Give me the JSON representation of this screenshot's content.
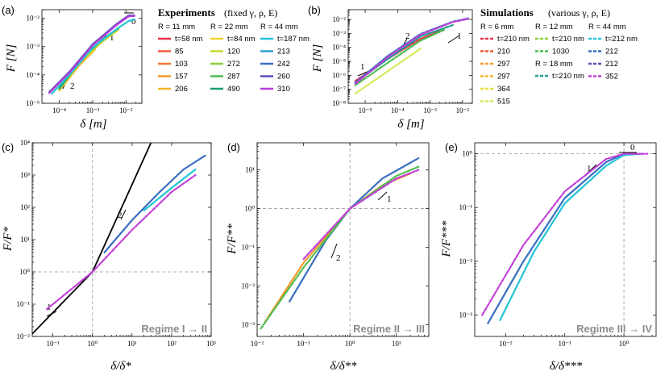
{
  "panels": {
    "a": {
      "label": "(a)",
      "xlabel": "δ [m]",
      "ylabel": "F [N]",
      "xticks": [
        "10⁻⁴",
        "10⁻³",
        "10⁻²"
      ],
      "yticks": [
        "10⁻⁵",
        "10⁻⁴",
        "10⁻³",
        "10⁻²"
      ],
      "slope_labels": [
        "0",
        "1",
        "2"
      ]
    },
    "b": {
      "label": "(b)",
      "xlabel": "δ [m]",
      "ylabel": "F [N]",
      "xticks": [
        "10⁻⁵",
        "10⁻⁴",
        "10⁻³",
        "10⁻²"
      ],
      "yticks": [
        "10⁻⁸",
        "10⁻⁷",
        "10⁻⁶",
        "10⁻⁵",
        "10⁻⁴",
        "10⁻³",
        "10⁻²"
      ],
      "slope_labels": [
        "1",
        "2",
        "1"
      ]
    },
    "c": {
      "label": "(c)",
      "xlabel": "δ/δ*",
      "ylabel": "F/F*",
      "xticks": [
        "10⁻¹",
        "10⁰",
        "10¹",
        "10²",
        "10³"
      ],
      "yticks": [
        "10⁻²",
        "10⁻¹",
        "10⁰",
        "10¹",
        "10²",
        "10³",
        "10⁴"
      ],
      "slope_labels": [
        "1",
        "2"
      ],
      "regime": "Regime I → II"
    },
    "d": {
      "label": "(d)",
      "xlabel": "δ/δ**",
      "ylabel": "F/F**",
      "xticks": [
        "10⁻²",
        "10⁻¹",
        "10⁰",
        "10¹"
      ],
      "yticks": [
        "10⁻³",
        "10⁻²",
        "10⁻¹",
        "10⁰",
        "10¹"
      ],
      "slope_labels": [
        "1",
        "2"
      ],
      "regime": "Regime II → III"
    },
    "e": {
      "label": "(e)",
      "xlabel": "δ/δ***",
      "ylabel": "F/F***",
      "xticks": [
        "10⁻²",
        "10⁻¹",
        "10⁰"
      ],
      "yticks": [
        "10⁻³",
        "10⁻²",
        "10⁻¹",
        "10⁰"
      ],
      "slope_labels": [
        "0",
        "1"
      ],
      "regime": "Regime III → IV"
    }
  },
  "legend_exp": {
    "title": "Experiments",
    "subtitle": "(fixed γ, ρ, E)",
    "groups": [
      {
        "header": "R = 11 mm",
        "items": [
          {
            "label": "t=58 nm",
            "color": "#e8324f"
          },
          {
            "label": "85",
            "color": "#f25a3a"
          },
          {
            "label": "103",
            "color": "#f47a30"
          },
          {
            "label": "157",
            "color": "#f59a2a"
          },
          {
            "label": "206",
            "color": "#f2b72b"
          }
        ]
      },
      {
        "header": "R = 22 mm",
        "items": [
          {
            "label": "t=84 nm",
            "color": "#f4d22c"
          },
          {
            "label": "120",
            "color": "#c9d92e"
          },
          {
            "label": "272",
            "color": "#8fcf3c"
          },
          {
            "label": "287",
            "color": "#4ebd50"
          },
          {
            "label": "490",
            "color": "#1e9f6e"
          }
        ]
      },
      {
        "header": "R = 44 mm",
        "items": [
          {
            "label": "t=187 nm",
            "color": "#22c5d6"
          },
          {
            "label": "213",
            "color": "#2a9fd0"
          },
          {
            "label": "242",
            "color": "#3a6fc0"
          },
          {
            "label": "260",
            "color": "#5d4fb8"
          },
          {
            "label": "310",
            "color": "#b23fd8"
          }
        ]
      }
    ]
  },
  "legend_sim": {
    "title": "Simulations",
    "subtitle": "(various γ, ρ, E)",
    "groups": [
      {
        "header": "R = 6 mm",
        "items": [
          {
            "label": "t=210 nm",
            "color": "#e8324f"
          },
          {
            "label": "210",
            "color": "#f25a3a"
          },
          {
            "label": "297",
            "color": "#f59a2a"
          },
          {
            "label": "297",
            "color": "#f2b72b"
          },
          {
            "label": "364",
            "color": "#e6e23a"
          },
          {
            "label": "515",
            "color": "#d8e85a"
          }
        ]
      },
      {
        "header": "R = 12 mm",
        "items": [
          {
            "label": "t=210 nm",
            "color": "#8fcf3c"
          },
          {
            "label": "1030",
            "color": "#4ebd50"
          }
        ]
      },
      {
        "header": "R = 18 mm",
        "items": [
          {
            "label": "t=210 nm",
            "color": "#1e9f8e"
          }
        ]
      },
      {
        "header": "R = 44 mm",
        "items": [
          {
            "label": "t=212 nm",
            "color": "#22c5d6"
          },
          {
            "label": "212",
            "color": "#3a6fc0"
          },
          {
            "label": "212",
            "color": "#5d4fb8"
          },
          {
            "label": "352",
            "color": "#c23fd8"
          }
        ]
      }
    ]
  },
  "chart_data": [
    {
      "panel": "a",
      "type": "line",
      "title": "Experiments (fixed γ, ρ, E)",
      "xlabel": "δ [m]",
      "ylabel": "F [N]",
      "xscale": "log",
      "yscale": "log",
      "xlim": [
        3e-05,
        0.03
      ],
      "ylim": [
        1e-05,
        0.02
      ],
      "series": [
        {
          "name": "R=11 mm, t=58 nm",
          "color": "#e8324f",
          "x": [
            0.0001,
            0.0004,
            0.0012
          ],
          "y": [
            3e-05,
            0.00025,
            0.0009
          ]
        },
        {
          "name": "R=11 mm, t=206 nm",
          "color": "#f2b72b",
          "x": [
            0.0001,
            0.0004,
            0.0012
          ],
          "y": [
            2.8e-05,
            0.00022,
            0.0008
          ]
        },
        {
          "name": "R=22 mm, t=120 nm",
          "color": "#c9d92e",
          "x": [
            0.0001,
            0.0005,
            0.002,
            0.006
          ],
          "y": [
            3e-05,
            0.00035,
            0.0015,
            0.004
          ]
        },
        {
          "name": "R=22 mm, t=490 nm",
          "color": "#1e9f6e",
          "x": [
            0.0001,
            0.0005,
            0.002,
            0.006
          ],
          "y": [
            3.3e-05,
            0.0004,
            0.0018,
            0.0045
          ]
        },
        {
          "name": "R=44 mm, t=187 nm",
          "color": "#22c5d6",
          "x": [
            6e-05,
            0.0002,
            0.001,
            0.005,
            0.012,
            0.018
          ],
          "y": [
            2.2e-05,
            0.0001,
            0.0009,
            0.004,
            0.008,
            0.009
          ]
        },
        {
          "name": "R=44 mm, t=260 nm",
          "color": "#5d4fb8",
          "x": [
            5e-05,
            0.0002,
            0.001,
            0.005,
            0.012,
            0.018
          ],
          "y": [
            2.5e-05,
            0.00013,
            0.0012,
            0.006,
            0.0125,
            0.0125
          ]
        },
        {
          "name": "R=44 mm, t=310 nm",
          "color": "#b23fd8",
          "x": [
            5e-05,
            0.0002,
            0.001,
            0.005,
            0.012,
            0.018
          ],
          "y": [
            2.3e-05,
            0.00012,
            0.0011,
            0.0055,
            0.0115,
            0.012
          ]
        }
      ]
    },
    {
      "panel": "b",
      "type": "line",
      "title": "Simulations (various γ, ρ, E)",
      "xlabel": "δ [m]",
      "ylabel": "F [N]",
      "xscale": "log",
      "yscale": "log",
      "xlim": [
        3e-06,
        0.02
      ],
      "ylim": [
        1e-08,
        0.05
      ],
      "series": [
        {
          "name": "R=6 mm, t=210 nm",
          "color": "#e8324f",
          "x": [
            5e-06,
            5e-05,
            0.0005,
            0.002
          ],
          "y": [
            4e-07,
            1.5e-05,
            0.0004,
            0.0015
          ]
        },
        {
          "name": "R=6 mm, t=515 nm",
          "color": "#d8e85a",
          "x": [
            5e-06,
            5e-05,
            0.0005
          ],
          "y": [
            5e-08,
            2e-06,
            8e-05
          ]
        },
        {
          "name": "R=12 mm, t=1030 nm",
          "color": "#4ebd50",
          "x": [
            5e-06,
            5e-05,
            0.0005,
            0.003
          ],
          "y": [
            2e-07,
            8e-06,
            0.0003,
            0.002
          ]
        },
        {
          "name": "R=18 mm, t=210 nm",
          "color": "#1e9f8e",
          "x": [
            5e-06,
            5e-05,
            0.0005,
            0.005
          ],
          "y": [
            3e-07,
            1.5e-05,
            0.0006,
            0.004
          ]
        },
        {
          "name": "R=44 mm, t=212 nm",
          "color": "#3a6fc0",
          "x": [
            5e-06,
            5e-05,
            0.0005,
            0.005,
            0.015
          ],
          "y": [
            3e-07,
            2.5e-05,
            0.0009,
            0.007,
            0.012
          ]
        },
        {
          "name": "R=44 mm, t=352 nm",
          "color": "#c23fd8",
          "x": [
            5e-06,
            5e-05,
            0.0005,
            0.005,
            0.015
          ],
          "y": [
            2.5e-07,
            2e-05,
            0.0008,
            0.0065,
            0.011
          ]
        }
      ]
    },
    {
      "panel": "c",
      "type": "line",
      "title": "Regime I → II",
      "xlabel": "δ/δ*",
      "ylabel": "F/F*",
      "xscale": "log",
      "yscale": "log",
      "xlim": [
        0.03,
        1000
      ],
      "ylim": [
        0.01,
        10000
      ],
      "series": [
        {
          "name": "asymptote",
          "color": "#000000",
          "x": [
            0.03,
            1,
            30
          ],
          "y": [
            0.012,
            1,
            10000
          ]
        },
        {
          "name": "experiments (blue)",
          "color": "#3a6fc0",
          "x": [
            2,
            10,
            50,
            200,
            700
          ],
          "y": [
            4,
            40,
            300,
            1500,
            4000
          ]
        },
        {
          "name": "experiments (cyan)",
          "color": "#22c5d6",
          "x": [
            20,
            100,
            400
          ],
          "y": [
            80,
            400,
            1500
          ]
        },
        {
          "name": "simulations (magenta)",
          "color": "#c23fd8",
          "x": [
            0.07,
            1,
            10,
            100,
            400
          ],
          "y": [
            0.07,
            1,
            20,
            300,
            1000
          ]
        }
      ]
    },
    {
      "panel": "d",
      "type": "line",
      "title": "Regime II → III",
      "xlabel": "δ/δ**",
      "ylabel": "F/F**",
      "xscale": "log",
      "yscale": "log",
      "xlim": [
        0.01,
        50
      ],
      "ylim": [
        0.0005,
        50
      ],
      "series": [
        {
          "name": "experiments (orange)",
          "color": "#f59a2a",
          "x": [
            0.015,
            0.1,
            1,
            5,
            20
          ],
          "y": [
            0.0012,
            0.04,
            1,
            4,
            8
          ]
        },
        {
          "name": "experiments (blue)",
          "color": "#3a6fc0",
          "x": [
            0.05,
            0.3,
            1,
            5,
            30
          ],
          "y": [
            0.004,
            0.15,
            1,
            6,
            20
          ]
        },
        {
          "name": "simulations (green)",
          "color": "#4ebd50",
          "x": [
            0.012,
            0.1,
            1,
            10,
            30
          ],
          "y": [
            0.0008,
            0.03,
            1,
            7,
            12
          ]
        },
        {
          "name": "simulations (magenta)",
          "color": "#c23fd8",
          "x": [
            0.1,
            1,
            10,
            30
          ],
          "y": [
            0.05,
            1,
            6,
            10
          ]
        }
      ]
    },
    {
      "panel": "e",
      "type": "line",
      "title": "Regime III → IV",
      "xlabel": "δ/δ***",
      "ylabel": "F/F***",
      "xscale": "log",
      "yscale": "log",
      "xlim": [
        0.003,
        3.5
      ],
      "ylim": [
        0.0004,
        1.6
      ],
      "series": [
        {
          "name": "experiments (blue)",
          "color": "#3a6fc0",
          "x": [
            0.005,
            0.02,
            0.1,
            0.5,
            1,
            2
          ],
          "y": [
            0.0007,
            0.01,
            0.15,
            0.7,
            1,
            1
          ]
        },
        {
          "name": "experiments (cyan)",
          "color": "#22c5d6",
          "x": [
            0.008,
            0.03,
            0.1,
            0.5,
            1,
            2
          ],
          "y": [
            0.0008,
            0.015,
            0.12,
            0.6,
            0.95,
            1
          ]
        },
        {
          "name": "simulations (magenta)",
          "color": "#c23fd8",
          "x": [
            0.004,
            0.02,
            0.1,
            0.5,
            1,
            2.5
          ],
          "y": [
            0.001,
            0.02,
            0.2,
            0.8,
            1,
            1
          ]
        }
      ]
    }
  ]
}
